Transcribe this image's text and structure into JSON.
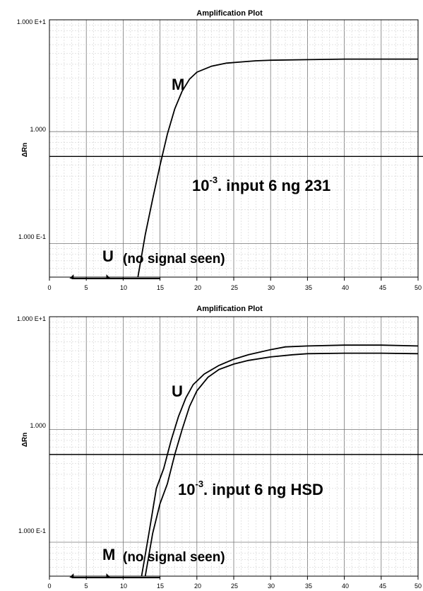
{
  "chart_data": [
    {
      "type": "line",
      "title": "Amplification Plot",
      "ylabel": "ΔRn",
      "xlabel": "",
      "x_ticks": [
        "0",
        "5",
        "10",
        "15",
        "20",
        "25",
        "30",
        "35",
        "40",
        "45",
        "50"
      ],
      "y_ticks": [
        "1.000 E+1",
        "1.000",
        "1.000 E-1"
      ],
      "yscale": "log",
      "xlim": [
        0,
        50
      ],
      "ylim": [
        0.05,
        10
      ],
      "threshold": 0.6,
      "grid": true,
      "series": [
        {
          "name": "M",
          "points": [
            [
              12,
              0.05
            ],
            [
              13,
              0.12
            ],
            [
              14,
              0.25
            ],
            [
              15,
              0.5
            ],
            [
              16,
              0.95
            ],
            [
              17,
              1.6
            ],
            [
              18,
              2.3
            ],
            [
              19,
              2.95
            ],
            [
              20,
              3.4
            ],
            [
              22,
              3.85
            ],
            [
              24,
              4.1
            ],
            [
              26,
              4.2
            ],
            [
              28,
              4.3
            ],
            [
              30,
              4.35
            ],
            [
              35,
              4.4
            ],
            [
              40,
              4.45
            ],
            [
              45,
              4.45
            ],
            [
              50,
              4.45
            ]
          ]
        }
      ],
      "annotations": {
        "curve_label": "M",
        "sample_main": "10",
        "sample_exp": "-3",
        "sample_rest": ". input 6 ng 231",
        "no_signal_letter": "U",
        "no_signal_text": "(no signal seen)"
      }
    },
    {
      "type": "line",
      "title": "Amplification Plot",
      "ylabel": "ΔRn",
      "xlabel": "",
      "x_ticks": [
        "0",
        "5",
        "10",
        "15",
        "20",
        "25",
        "30",
        "35",
        "40",
        "45",
        "50"
      ],
      "y_ticks": [
        "1.000 E+1",
        "1.000",
        "1.000 E-1"
      ],
      "yscale": "log",
      "xlim": [
        0,
        50
      ],
      "ylim": [
        0.05,
        10
      ],
      "threshold": 0.6,
      "grid": true,
      "series": [
        {
          "name": "U",
          "points": [
            [
              12.5,
              0.05
            ],
            [
              13.5,
              0.12
            ],
            [
              14.5,
              0.3
            ],
            [
              15.5,
              0.45
            ],
            [
              16.5,
              0.8
            ],
            [
              17.5,
              1.3
            ],
            [
              18.5,
              1.9
            ],
            [
              19.5,
              2.5
            ],
            [
              21,
              3.1
            ],
            [
              23,
              3.7
            ],
            [
              25,
              4.2
            ],
            [
              27,
              4.6
            ],
            [
              30,
              5.1
            ],
            [
              32,
              5.4
            ],
            [
              35,
              5.5
            ],
            [
              40,
              5.6
            ],
            [
              45,
              5.6
            ],
            [
              50,
              5.5
            ]
          ]
        },
        {
          "name": "U",
          "points": [
            [
              13,
              0.05
            ],
            [
              14,
              0.12
            ],
            [
              15,
              0.22
            ],
            [
              16,
              0.33
            ],
            [
              17,
              0.6
            ],
            [
              18,
              1.0
            ],
            [
              19,
              1.6
            ],
            [
              20,
              2.2
            ],
            [
              21.5,
              2.9
            ],
            [
              23,
              3.4
            ],
            [
              25,
              3.8
            ],
            [
              27,
              4.1
            ],
            [
              30,
              4.4
            ],
            [
              33,
              4.6
            ],
            [
              35,
              4.7
            ],
            [
              40,
              4.75
            ],
            [
              45,
              4.75
            ],
            [
              50,
              4.7
            ]
          ]
        }
      ],
      "annotations": {
        "curve_label": "U",
        "sample_main": "10",
        "sample_exp": "-3",
        "sample_rest": ". input 6 ng HSD",
        "no_signal_letter": "M",
        "no_signal_text": "(no signal seen)"
      }
    }
  ]
}
